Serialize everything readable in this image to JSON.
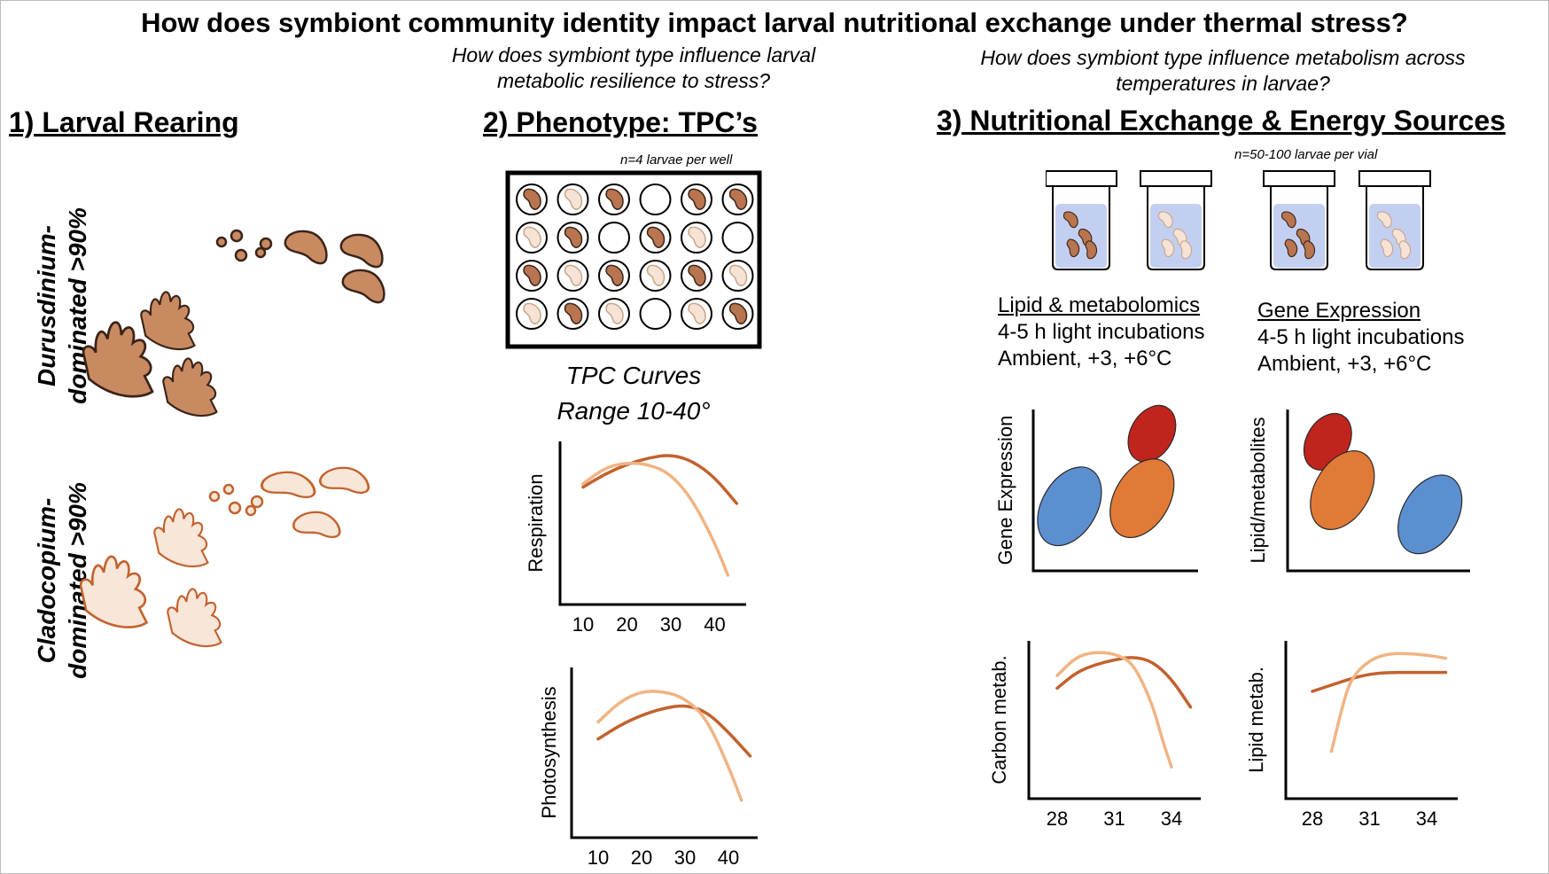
{
  "title": "How does symbiont community identity impact larval nutritional exchange under thermal stress?",
  "questions": {
    "q2": "How does symbiont type influence larval metabolic resilience to stress?",
    "q3": "How does symbiont type influence metabolism across temperatures in larvae?"
  },
  "sections": {
    "s1": "1) Larval Rearing",
    "s2": "2) Phenotype: TPC’s",
    "s3": "3) Nutritional Exchange & Energy Sources"
  },
  "rearing": {
    "durusdinium_line1": "Durusdinium-",
    "durusdinium_line2": "dominated >90%",
    "cladocopium_line1": "Cladocopium-",
    "cladocopium_line2": "dominated >90%"
  },
  "plate": {
    "note": "n=4 larvae per well",
    "wells": [
      [
        "dark",
        "light",
        "dark",
        "empty",
        "dark",
        "dark"
      ],
      [
        "light",
        "dark",
        "empty",
        "dark",
        "light",
        "empty"
      ],
      [
        "dark",
        "light",
        "dark",
        "light",
        "dark",
        "light"
      ],
      [
        "light",
        "dark",
        "light",
        "empty",
        "light",
        "dark"
      ]
    ]
  },
  "tpc": {
    "line1": "TPC Curves",
    "line2": "Range 10-40°"
  },
  "vials_note": "n=50-100 larvae per vial",
  "lipid_block": {
    "heading": "Lipid & metabolomics",
    "line1": "4-5 h light incubations",
    "line2": "Ambient, +3, +6°C"
  },
  "gene_block": {
    "heading": "Gene Expression",
    "line1": "4-5 h light incubations",
    "line2": "Ambient, +3, +6°C"
  },
  "colors": {
    "dark_larva": "#b8754f",
    "light_larva": "#f6e3d6",
    "dark_curve": "#c2622e",
    "light_curve": "#f0b484",
    "red": "#c0241d",
    "orange": "#e07a36",
    "blue": "#5b8fd0",
    "vial": "#c3cff1"
  },
  "chart_data": [
    {
      "type": "line",
      "name": "respiration",
      "ylabel": "Respiration",
      "xlabel": "",
      "x_ticks": [
        "10",
        "20",
        "30",
        "40"
      ],
      "series": [
        {
          "name": "Durusdinium",
          "x": [
            10,
            15,
            20,
            25,
            30,
            35,
            40,
            45
          ],
          "values": [
            0.72,
            0.8,
            0.86,
            0.9,
            0.92,
            0.88,
            0.78,
            0.62
          ]
        },
        {
          "name": "Cladocopium",
          "x": [
            10,
            15,
            20,
            25,
            30,
            35,
            40,
            43
          ],
          "values": [
            0.74,
            0.84,
            0.87,
            0.86,
            0.8,
            0.64,
            0.38,
            0.18
          ]
        }
      ]
    },
    {
      "type": "line",
      "name": "photosynthesis",
      "ylabel": "Photosynthesis",
      "xlabel": "",
      "x_ticks": [
        "10",
        "20",
        "30",
        "40"
      ],
      "series": [
        {
          "name": "Durusdinium",
          "x": [
            10,
            15,
            20,
            25,
            30,
            35,
            40,
            45
          ],
          "values": [
            0.58,
            0.66,
            0.72,
            0.76,
            0.78,
            0.74,
            0.62,
            0.48
          ]
        },
        {
          "name": "Cladocopium",
          "x": [
            10,
            15,
            20,
            25,
            30,
            35,
            40,
            43
          ],
          "values": [
            0.68,
            0.8,
            0.86,
            0.86,
            0.82,
            0.7,
            0.42,
            0.22
          ]
        }
      ]
    },
    {
      "type": "scatter",
      "name": "gene_expression_ordination",
      "ylabel": "Gene Expression",
      "xlabel": "",
      "series": [
        {
          "name": "red",
          "x": [
            0.72
          ],
          "values": [
            0.85
          ]
        },
        {
          "name": "orange",
          "x": [
            0.66
          ],
          "values": [
            0.45
          ]
        },
        {
          "name": "blue",
          "x": [
            0.22
          ],
          "values": [
            0.4
          ]
        }
      ]
    },
    {
      "type": "scatter",
      "name": "lipid_metabolites_ordination",
      "ylabel": "Lipid/metabolites",
      "xlabel": "",
      "series": [
        {
          "name": "red",
          "x": [
            0.22
          ],
          "values": [
            0.8
          ]
        },
        {
          "name": "orange",
          "x": [
            0.3
          ],
          "values": [
            0.5
          ]
        },
        {
          "name": "blue",
          "x": [
            0.78
          ],
          "values": [
            0.35
          ]
        }
      ]
    },
    {
      "type": "line",
      "name": "carbon_metabolism",
      "ylabel": "Carbon metab.",
      "xlabel": "",
      "x_ticks": [
        "28",
        "31",
        "34"
      ],
      "series": [
        {
          "name": "Durusdinium",
          "x": [
            28,
            29,
            30,
            31,
            32,
            33,
            34,
            35
          ],
          "values": [
            0.7,
            0.8,
            0.85,
            0.88,
            0.9,
            0.87,
            0.76,
            0.58
          ]
        },
        {
          "name": "Cladocopium",
          "x": [
            28,
            29,
            30,
            31,
            32,
            33,
            33.5,
            34
          ],
          "values": [
            0.78,
            0.9,
            0.93,
            0.92,
            0.86,
            0.6,
            0.38,
            0.2
          ]
        }
      ]
    },
    {
      "type": "line",
      "name": "lipid_metabolism",
      "ylabel": "Lipid metab.",
      "xlabel": "",
      "x_ticks": [
        "28",
        "31",
        "34"
      ],
      "series": [
        {
          "name": "Durusdinium",
          "x": [
            28,
            29,
            30,
            31,
            32,
            33,
            34,
            35
          ],
          "values": [
            0.68,
            0.72,
            0.76,
            0.79,
            0.8,
            0.8,
            0.8,
            0.8
          ]
        },
        {
          "name": "Cladocopium",
          "x": [
            29,
            29.5,
            30,
            31,
            32,
            33,
            34,
            35
          ],
          "values": [
            0.3,
            0.55,
            0.76,
            0.88,
            0.92,
            0.92,
            0.91,
            0.89
          ]
        }
      ]
    }
  ]
}
